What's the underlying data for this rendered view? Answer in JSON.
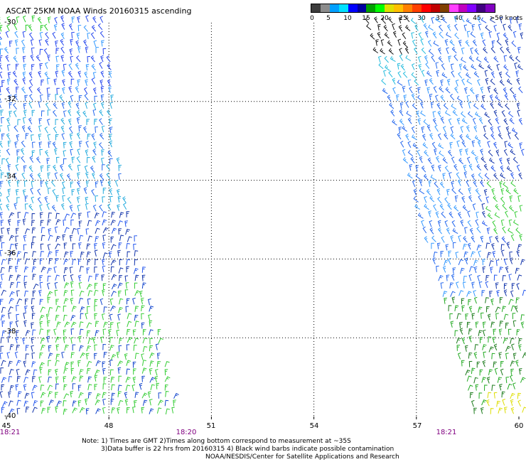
{
  "header": {
    "title": "ASCAT 25KM NOAA Winds 20160315 ascending"
  },
  "legend": {
    "labels": [
      "0",
      "5",
      "10",
      "15",
      "20",
      "25",
      "30",
      "35",
      "40",
      "45",
      ">50 knots"
    ],
    "colors": [
      "#3c3c3c",
      "#8c8c8c",
      "#00a0ff",
      "#00e0ff",
      "#0000ff",
      "#0000a0",
      "#00a000",
      "#00ff00",
      "#e0e000",
      "#ffc000",
      "#ff8000",
      "#ff4000",
      "#ff0000",
      "#c00000",
      "#804000",
      "#ff40ff",
      "#c000c0",
      "#8000ff",
      "#400080",
      "#8000c0"
    ]
  },
  "map": {
    "lat_labels": [
      "-30",
      "-32",
      "-34",
      "-36",
      "-38",
      "-40"
    ],
    "lon_labels": [
      "45",
      "48",
      "51",
      "54",
      "57",
      "60"
    ],
    "time_labels": [
      "18:21",
      "18:20",
      "18:21"
    ]
  },
  "notes": {
    "line1": "Note: 1) Times are GMT 2)Times along bottom correspond to measurement at ~35S",
    "line2": "3)Data buffer is 22 hrs from 20160315 4) Black wind barbs indicate possible contamination",
    "line3": "NOAA/NESDIS/Center for Satellite Applications and Research"
  }
}
